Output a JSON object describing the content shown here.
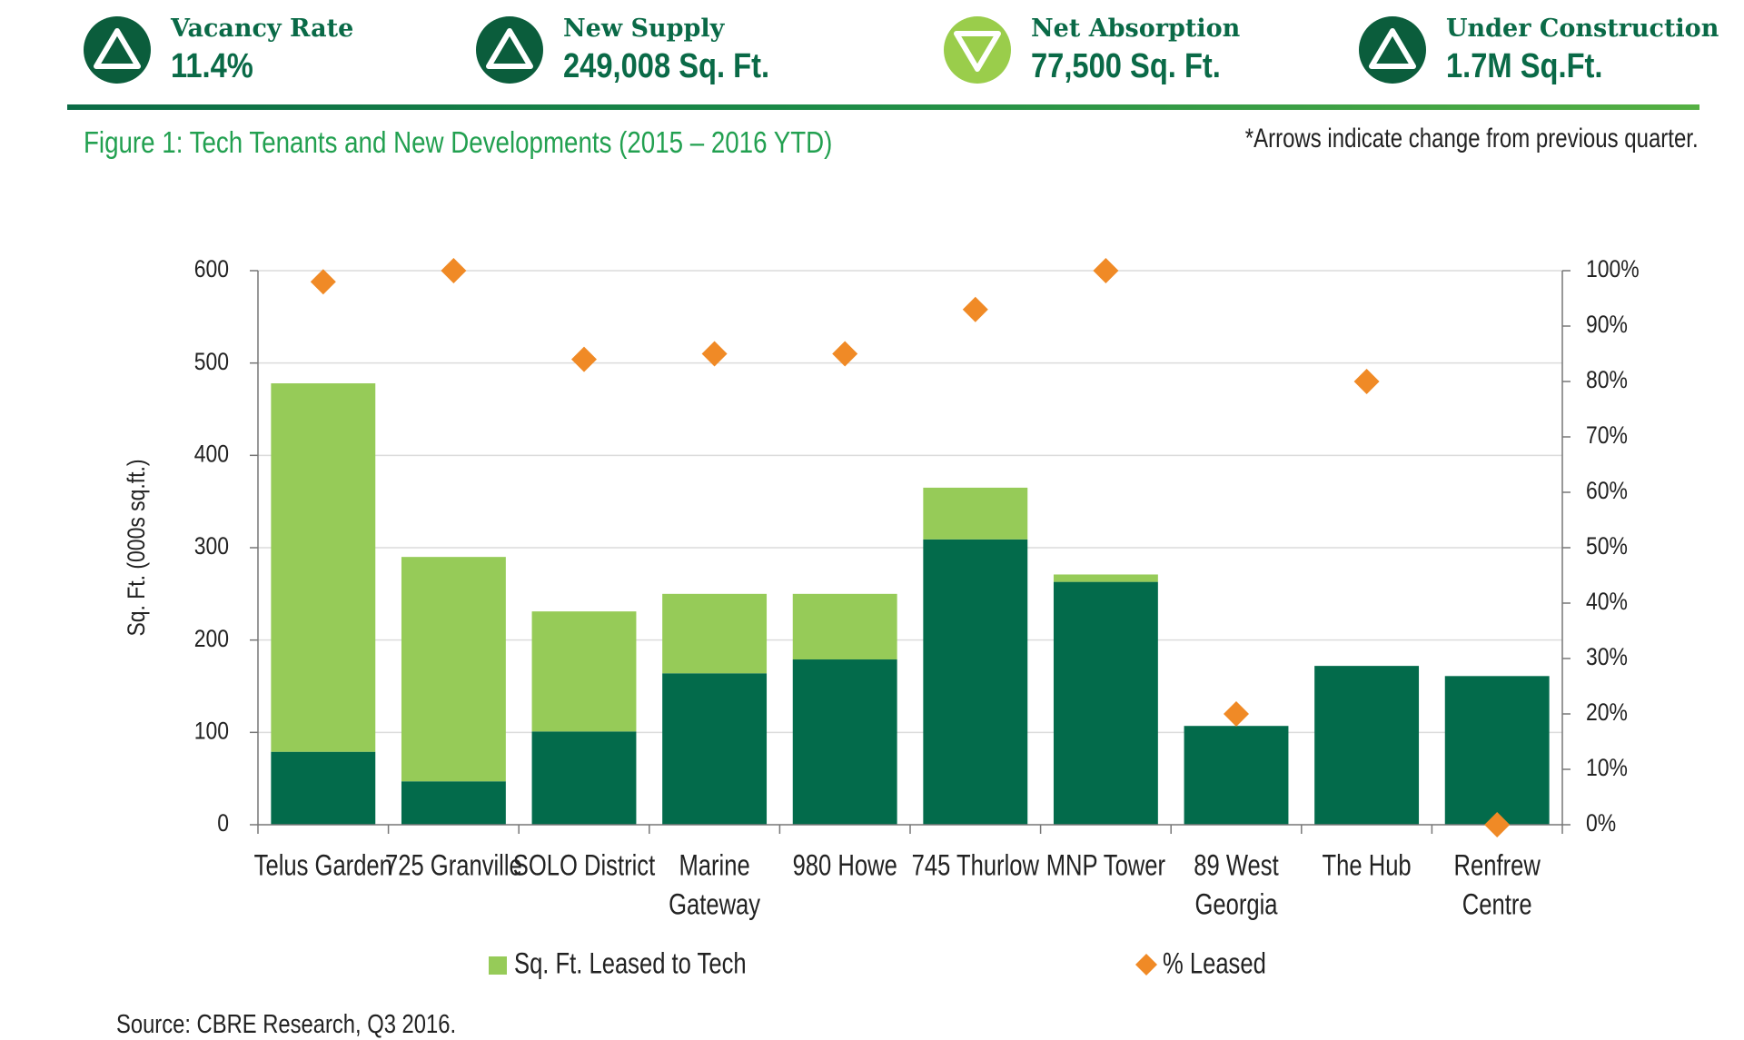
{
  "stats": [
    {
      "label": "Vacancy Rate",
      "value": "11.4%",
      "direction": "up",
      "badge_color": "#0b5d3c",
      "arrow_color": "#ffffff",
      "icon": "up-arrow-icon"
    },
    {
      "label": "New Supply",
      "value": "249,008 Sq. Ft.",
      "direction": "up",
      "badge_color": "#0b5d3c",
      "arrow_color": "#ffffff",
      "icon": "up-arrow-icon"
    },
    {
      "label": "Net Absorption",
      "value": "77,500 Sq. Ft.",
      "direction": "down",
      "badge_color": "#9acd4b",
      "arrow_color": "#ffffff",
      "icon": "down-arrow-icon"
    },
    {
      "label": "Under Construction",
      "value": "1.7M Sq.Ft.",
      "direction": "up",
      "badge_color": "#0b5d3c",
      "arrow_color": "#ffffff",
      "icon": "up-arrow-icon"
    }
  ],
  "figure": {
    "title": "Figure 1: Tech Tenants and New Developments (2015 – 2016 YTD)",
    "note": "*Arrows indicate change from previous quarter."
  },
  "source": "Source: CBRE Research, Q3 2016.",
  "chart_data": {
    "type": "bar",
    "stacked": true,
    "categories": [
      [
        "Telus Garden"
      ],
      [
        "725 Granville"
      ],
      [
        "SOLO District"
      ],
      [
        "Marine",
        "Gateway"
      ],
      [
        "980 Howe"
      ],
      [
        "745 Thurlow"
      ],
      [
        "MNP Tower"
      ],
      [
        "89 West",
        "Georgia"
      ],
      [
        "The Hub"
      ],
      [
        "Renfrew",
        "Centre"
      ]
    ],
    "ylabel": "Sq. Ft. (000s sq.ft.)",
    "ylim": [
      0,
      600
    ],
    "y_ticks": [
      "0",
      "100",
      "200",
      "300",
      "400",
      "500",
      "600"
    ],
    "y2lim": [
      0,
      100
    ],
    "y2_ticks": [
      "0%",
      "10%",
      "20%",
      "30%",
      "40%",
      "50%",
      "60%",
      "70%",
      "80%",
      "90%",
      "100%"
    ],
    "grid": true,
    "legend_position": "bottom",
    "series": [
      {
        "name": "",
        "kind": "bar",
        "color": "#036b4b",
        "values": [
          79,
          47,
          101,
          164,
          179,
          309,
          263,
          107,
          172,
          161
        ]
      },
      {
        "name": "Sq. Ft. Leased to Tech",
        "kind": "bar",
        "color": "#96cb58",
        "values": [
          399,
          243,
          130,
          86,
          71,
          56,
          8,
          0,
          0,
          0
        ]
      },
      {
        "name": "% Leased",
        "kind": "scatter",
        "axis": "right",
        "marker": "diamond",
        "color": "#f08a26",
        "values": [
          98,
          100,
          84,
          85,
          85,
          93,
          100,
          20,
          80,
          0
        ]
      }
    ]
  }
}
